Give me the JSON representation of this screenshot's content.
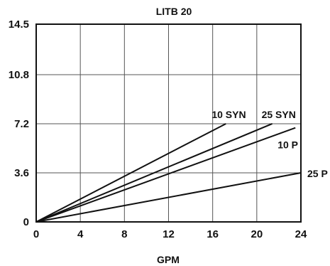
{
  "chart_data": {
    "type": "line",
    "title": "LITB 20",
    "xlabel": "GPM",
    "ylabel": "",
    "xlim": [
      0,
      24
    ],
    "ylim": [
      0,
      14.5
    ],
    "x_ticks": [
      0,
      4,
      8,
      12,
      16,
      20,
      24
    ],
    "y_ticks": [
      0,
      3.6,
      7.2,
      10.8,
      14.5
    ],
    "x_tick_labels": [
      "0",
      "4",
      "8",
      "12",
      "16",
      "20",
      "24"
    ],
    "y_tick_labels": [
      "0",
      "3.6",
      "7.2",
      "10.8",
      "14.5"
    ],
    "grid": true,
    "line_color": "#111111",
    "series": [
      {
        "name": "10 SYN",
        "x": [
          0,
          17.2
        ],
        "y": [
          0,
          7.2
        ]
      },
      {
        "name": "25 SYN",
        "x": [
          0,
          21.4
        ],
        "y": [
          0,
          7.2
        ]
      },
      {
        "name": "10 P",
        "x": [
          0,
          23.5
        ],
        "y": [
          0,
          6.9
        ]
      },
      {
        "name": "25 P",
        "x": [
          0,
          24
        ],
        "y": [
          0,
          3.6
        ]
      }
    ]
  }
}
